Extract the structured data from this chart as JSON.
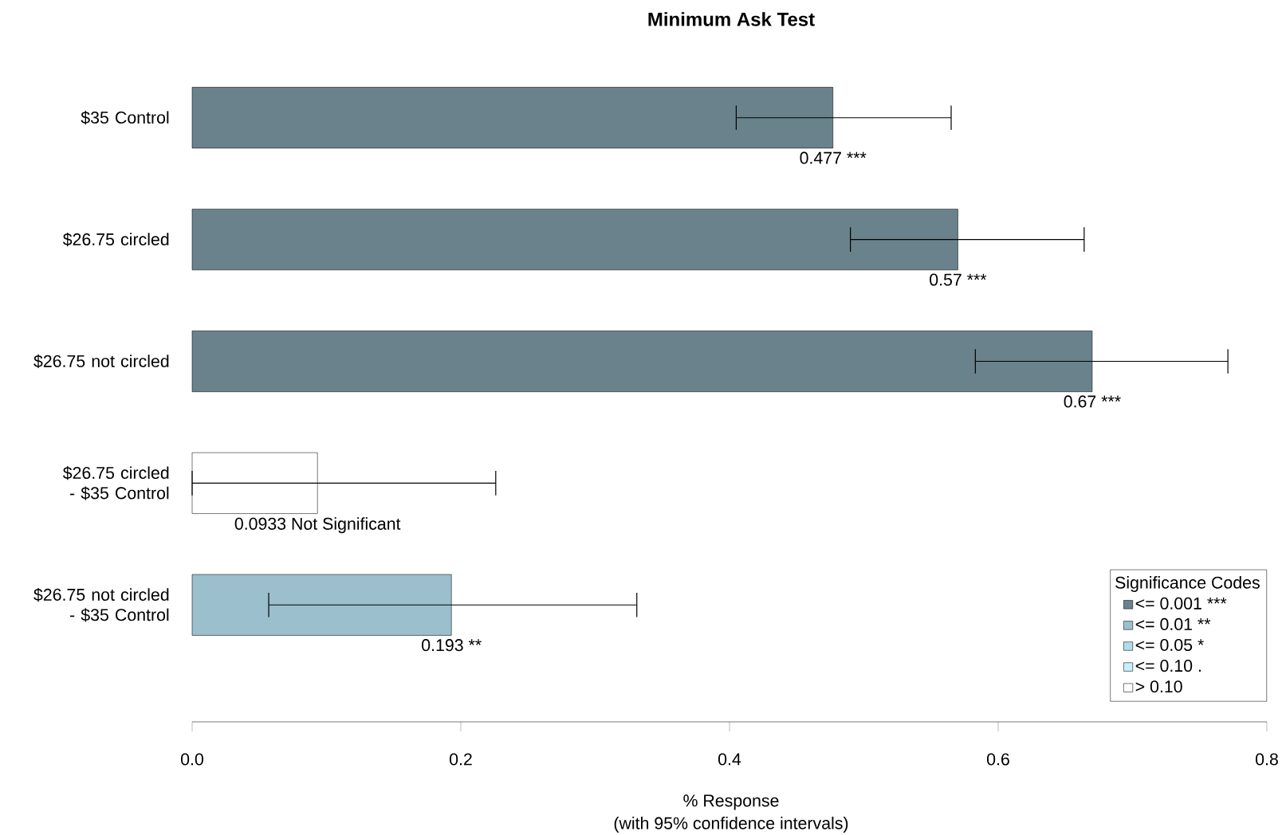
{
  "chart_data": {
    "type": "bar",
    "orientation": "horizontal",
    "title": "Minimum Ask Test",
    "xlabel": "% Response",
    "annotations": [
      "(with 95% confidence intervals)"
    ],
    "categories": [
      "$35 Control",
      "$26.75 circled",
      "$26.75 not circled",
      "$26.75 circled - $35 Control",
      "$26.75 not circled - $35 Control"
    ],
    "legend_title": "Significance Codes",
    "legend": "bottom right",
    "series": [
      {
        "name": "<= 0.001 ***",
        "color": "#6a828b",
        "values": [
          0.477,
          0.57,
          0.67,
          null,
          null
        ],
        "errors": [
          [
            0.405,
            0.565
          ],
          [
            0.49,
            0.664
          ],
          [
            0.583,
            0.771
          ],
          null,
          null
        ],
        "value_labels": [
          "0.477 ***",
          "0.57 ***",
          "0.67 ***",
          null,
          null
        ]
      },
      {
        "name": "<= 0.01 **",
        "color": "#9bbfcc",
        "values": [
          null,
          null,
          null,
          null,
          0.193
        ],
        "errors": [
          null,
          null,
          null,
          null,
          [
            0.057,
            0.331
          ]
        ],
        "value_labels": [
          null,
          null,
          null,
          null,
          "0.193 **"
        ]
      },
      {
        "name": "<= 0.05 *",
        "color": "#b1dde9",
        "values": [
          null,
          null,
          null,
          null,
          null
        ]
      },
      {
        "name": "<= 0.10 .",
        "color": "#c6effb",
        "values": [
          null,
          null,
          null,
          null,
          null
        ]
      },
      {
        "name": "> 0.10",
        "color": "#ffffff",
        "values": [
          null,
          null,
          null,
          0.0933,
          null
        ],
        "errors": [
          null,
          null,
          null,
          [
            0,
            0.226
          ],
          null
        ],
        "value_labels": [
          null,
          null,
          null,
          "0.0933 Not Significant",
          null
        ]
      }
    ],
    "xlim": [
      0,
      0.8
    ],
    "xticks": [
      {
        "value": 0,
        "label": "0.0"
      },
      0.2,
      0.4,
      0.6,
      0.8
    ],
    "grid": false
  }
}
